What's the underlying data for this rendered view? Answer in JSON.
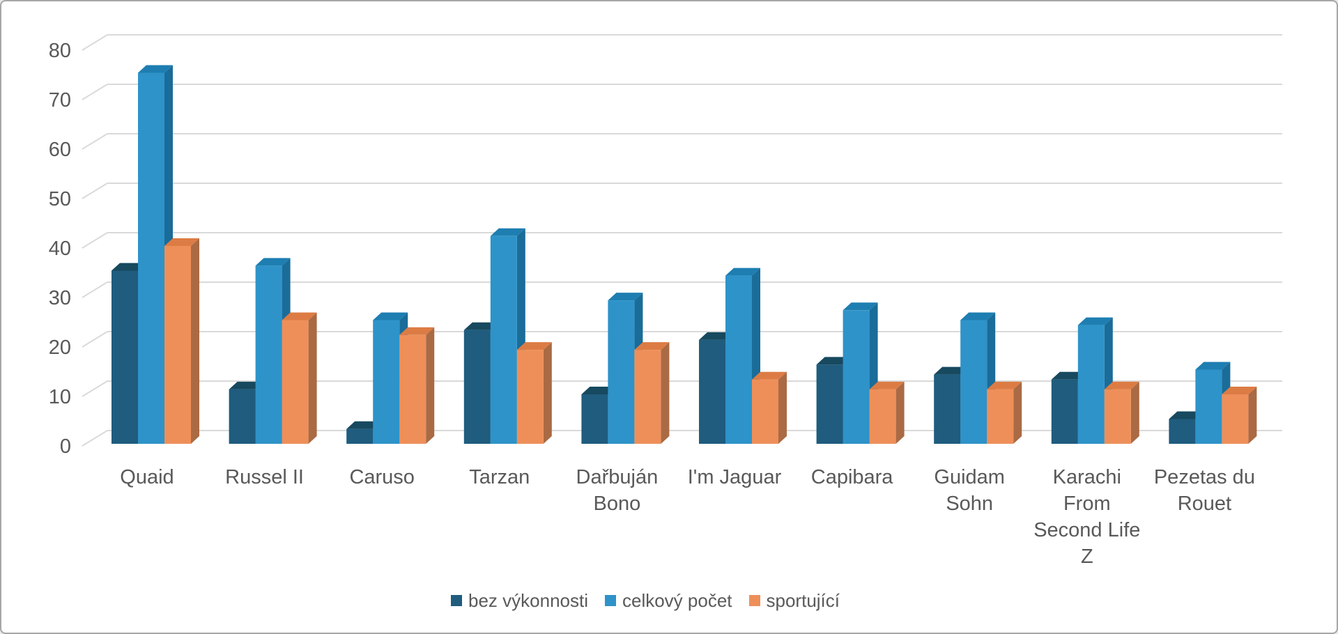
{
  "chart_data": {
    "type": "bar",
    "variant": "3d-clustered-column",
    "title": "",
    "categories": [
      "Quaid",
      "Russel II",
      "Caruso",
      "Tarzan",
      "Dařbuján Bono",
      "I'm Jaguar",
      "Capibara",
      "Guidam Sohn",
      "Karachi From Second Life Z",
      "Pezetas du Rouet"
    ],
    "category_display_lines": [
      [
        "Quaid"
      ],
      [
        "Russel II"
      ],
      [
        "Caruso"
      ],
      [
        "Tarzan"
      ],
      [
        "Dařbuján",
        "Bono"
      ],
      [
        "I'm Jaguar"
      ],
      [
        "Capibara"
      ],
      [
        "Guidam",
        "Sohn"
      ],
      [
        "Karachi",
        "From",
        "Second Life",
        "Z"
      ],
      [
        "Pezetas du",
        "Rouet"
      ]
    ],
    "series": [
      {
        "name": "bez výkonnosti",
        "values": [
          35,
          11,
          3,
          23,
          10,
          21,
          16,
          14,
          13,
          5
        ],
        "colors": {
          "front": "#1F5C7E",
          "top": "#17495F",
          "side": "#123C51"
        }
      },
      {
        "name": "celkový počet",
        "values": [
          75,
          36,
          25,
          42,
          29,
          34,
          27,
          25,
          24,
          15
        ],
        "colors": {
          "front": "#2E93C9",
          "top": "#1E7EB1",
          "side": "#1A6C99"
        }
      },
      {
        "name": "sportující",
        "values": [
          40,
          25,
          22,
          19,
          19,
          13,
          11,
          11,
          11,
          10
        ],
        "colors": {
          "front": "#EE8F5A",
          "top": "#DC7C44",
          "side": "#AA6A43"
        }
      }
    ],
    "y_axis": {
      "min": 0,
      "max": 80,
      "step": 10,
      "tick_labels": [
        "0",
        "10",
        "20",
        "30",
        "40",
        "50",
        "60",
        "70",
        "80"
      ]
    },
    "legend": {
      "position": "bottom",
      "entries": [
        "bez výkonnosti",
        "celkový počet",
        "sportující"
      ]
    },
    "grid": true
  },
  "style": {
    "background": "#FFFFFF",
    "border_color": "#A6A6A6",
    "gridline_color": "#D9D9D9",
    "text_color": "#595959"
  }
}
